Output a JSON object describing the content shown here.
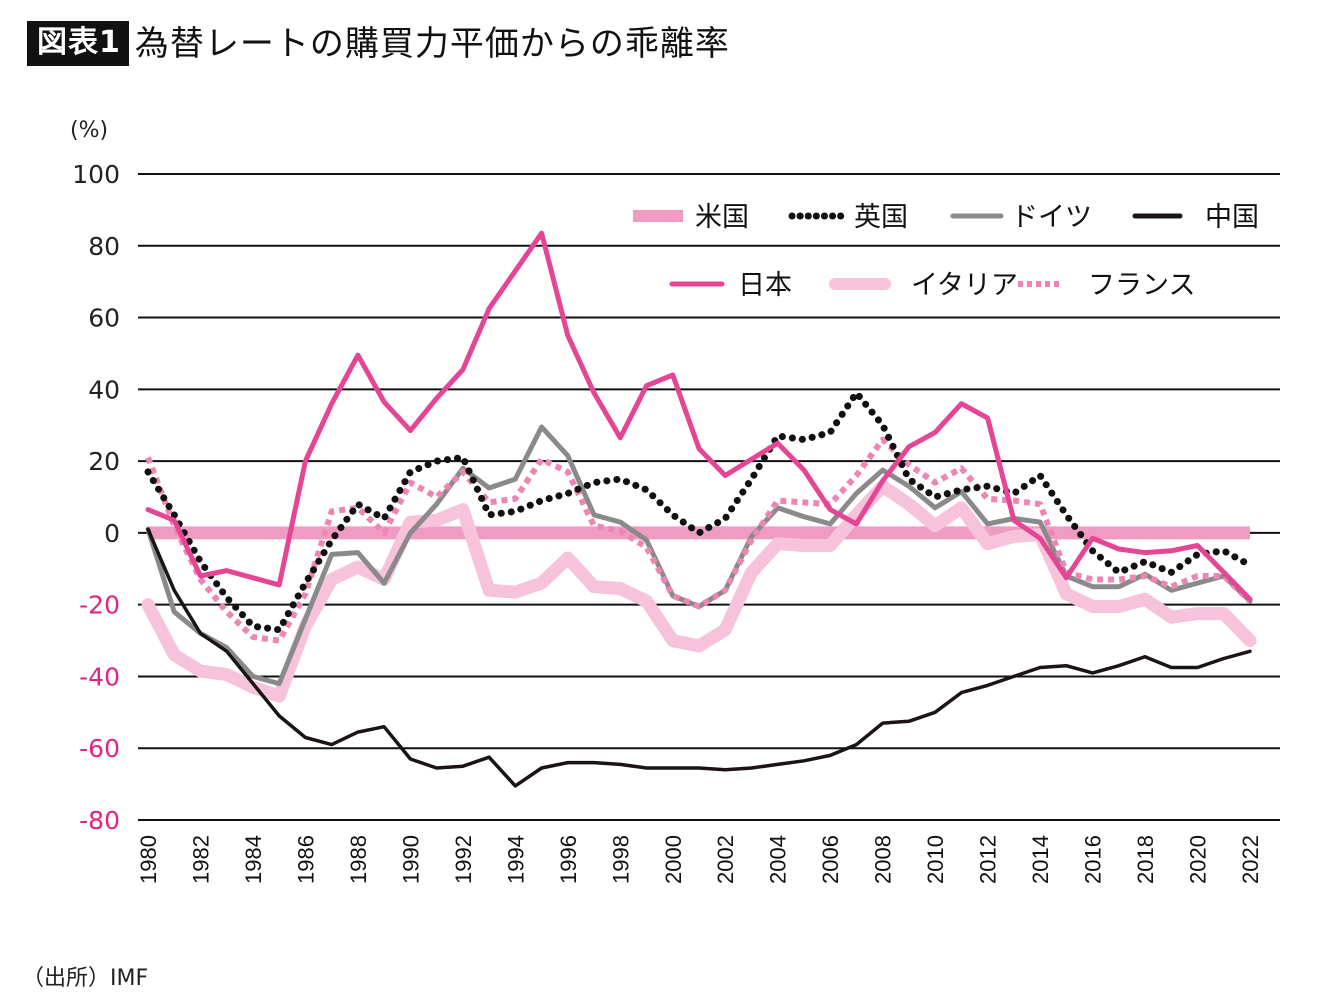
{
  "header": {
    "badge": "図表1",
    "title": "為替レートの購買力平価からの乖離率"
  },
  "unit_label": "(%)",
  "source": "（出所）IMF",
  "colors": {
    "us": "#f09cc2",
    "uk": "#111111",
    "germany": "#8a8a8a",
    "china": "#1a1414",
    "japan": "#e54595",
    "italy": "#f6c3da",
    "france": "#ee86b4",
    "negative_tick": "#e0247f",
    "grid": "#111111"
  },
  "chart_data": {
    "type": "line",
    "title": "為替レートの購買力平価からの乖離率",
    "xlabel": "",
    "ylabel": "(%)",
    "ylim": [
      -80,
      100
    ],
    "xlim": [
      1980,
      2022
    ],
    "yticks": [
      100,
      80,
      60,
      40,
      20,
      0,
      -20,
      -40,
      -60,
      -80
    ],
    "ytick_labels": [
      "100",
      "80",
      "60",
      "40",
      "20",
      "0",
      "-20",
      "-40",
      "-60",
      "-80"
    ],
    "xticks": [
      1980,
      1982,
      1984,
      1986,
      1988,
      1990,
      1992,
      1994,
      1996,
      1998,
      2000,
      2002,
      2004,
      2006,
      2008,
      2010,
      2012,
      2014,
      2016,
      2018,
      2020,
      2022
    ],
    "xtick_labels": [
      "1980",
      "1982",
      "1984",
      "1986",
      "1988",
      "1990",
      "1992",
      "1994",
      "1996",
      "1998",
      "2000",
      "2002",
      "2004",
      "2006",
      "2008",
      "2010",
      "2012",
      "2014",
      "2016",
      "2018",
      "2020",
      "2022"
    ],
    "grid": true,
    "legend_position": "top-right",
    "x": [
      1980,
      1981,
      1982,
      1983,
      1984,
      1985,
      1986,
      1987,
      1988,
      1989,
      1990,
      1991,
      1992,
      1993,
      1994,
      1995,
      1996,
      1997,
      1998,
      1999,
      2000,
      2001,
      2002,
      2003,
      2004,
      2005,
      2006,
      2007,
      2008,
      2009,
      2010,
      2011,
      2012,
      2013,
      2014,
      2015,
      2016,
      2017,
      2018,
      2019,
      2020,
      2021,
      2022
    ],
    "series": [
      {
        "key": "us",
        "name": "米国",
        "style": "thick",
        "values": [
          0,
          0,
          0,
          0,
          0,
          0,
          0,
          0,
          0,
          0,
          0,
          0,
          0,
          0,
          0,
          0,
          0,
          0,
          0,
          0,
          0,
          0,
          0,
          0,
          0,
          0,
          0,
          0,
          0,
          0,
          0,
          0,
          0,
          0,
          0,
          0,
          0,
          0,
          0,
          0,
          0,
          0,
          0
        ]
      },
      {
        "key": "uk",
        "name": "英国",
        "style": "dotted",
        "values": [
          17,
          5,
          -8,
          -18,
          -26,
          -27,
          -14,
          -2,
          8,
          4,
          17,
          20,
          21,
          5,
          6,
          9,
          11,
          14,
          15,
          12,
          5,
          0,
          4,
          15,
          27,
          26,
          28,
          39,
          30,
          15,
          10,
          12,
          13,
          11,
          16,
          5,
          -5,
          -11,
          -8,
          -11,
          -6,
          -5,
          -9
        ]
      },
      {
        "key": "germany",
        "name": "ドイツ",
        "style": "solid-gray",
        "values": [
          1,
          -22,
          -28,
          -32,
          -40,
          -42,
          -24,
          -6,
          -5.5,
          -14,
          0,
          8,
          18,
          12.5,
          15,
          29.5,
          21.5,
          5,
          3,
          -2,
          -17.5,
          -20.5,
          -16,
          -1,
          7,
          4.5,
          2.5,
          11,
          17.5,
          13,
          7,
          11.5,
          2.5,
          4,
          3,
          -12,
          -15,
          -15,
          -11.5,
          -16,
          -14,
          -12,
          -19
        ]
      },
      {
        "key": "china",
        "name": "中国",
        "style": "solid-black",
        "values": [
          1,
          -16,
          -28,
          -33,
          -42,
          -51,
          -57,
          -59,
          -55.5,
          -54,
          -63,
          -65.5,
          -65,
          -62.5,
          -70.5,
          -65.5,
          -64,
          -64,
          -64.5,
          -65.5,
          -65.5,
          -65.5,
          -66,
          -65.5,
          -64.5,
          -63.5,
          -62,
          -59,
          -53,
          -52.5,
          -50,
          -44.5,
          -42.5,
          -40,
          -37.5,
          -37,
          -39,
          -37,
          -34.5,
          -37.5,
          -37.5,
          -35,
          -33
        ]
      },
      {
        "key": "japan",
        "name": "日本",
        "style": "solid-pink",
        "values": [
          6.5,
          3.5,
          -12,
          -10.5,
          -12.5,
          -14.5,
          20,
          36,
          49.5,
          36.5,
          28.5,
          37.5,
          45.5,
          62.5,
          73,
          83.5,
          55,
          39,
          26.5,
          41,
          44,
          23.5,
          16,
          20.5,
          25,
          17.5,
          6.5,
          2.5,
          14.5,
          24,
          28,
          36,
          32,
          3.5,
          -1.5,
          -12.5,
          -1.5,
          -4.5,
          -5.5,
          -5,
          -3.5,
          -11,
          -18.5
        ]
      },
      {
        "key": "italy",
        "name": "イタリア",
        "style": "thick-light",
        "values": [
          -20,
          -34,
          -38.5,
          -39.5,
          -43,
          -45.5,
          -26,
          -13,
          -9.5,
          -13,
          3,
          3.5,
          6.5,
          -16,
          -16.5,
          -14,
          -7,
          -15,
          -15.5,
          -19,
          -30,
          -31.5,
          -27,
          -11,
          -3,
          -3.5,
          -3.5,
          5,
          13,
          8,
          2,
          7,
          -3,
          -1,
          -0.5,
          -17,
          -20.5,
          -20.5,
          -18.5,
          -23.5,
          -22.5,
          -22.5,
          -30
        ]
      },
      {
        "key": "france",
        "name": "フランス",
        "style": "dashed-pink",
        "values": [
          21,
          2,
          -13,
          -22,
          -29,
          -30,
          -17,
          6,
          7,
          0,
          14,
          10,
          17,
          8.5,
          9.5,
          20.5,
          17,
          2,
          0.5,
          -4,
          -17.5,
          -20.5,
          -16,
          -2,
          9,
          8.5,
          8,
          16,
          26,
          19,
          14,
          18,
          9.5,
          9,
          8,
          -11,
          -13,
          -13,
          -12,
          -15,
          -12,
          -12,
          -19
        ]
      }
    ],
    "legend": [
      {
        "key": "us",
        "label": "米国"
      },
      {
        "key": "uk",
        "label": "英国"
      },
      {
        "key": "germany",
        "label": "ドイツ"
      },
      {
        "key": "china",
        "label": "中国"
      },
      {
        "key": "japan",
        "label": "日本"
      },
      {
        "key": "italy",
        "label": "イタリア"
      },
      {
        "key": "france",
        "label": "フランス"
      }
    ]
  }
}
